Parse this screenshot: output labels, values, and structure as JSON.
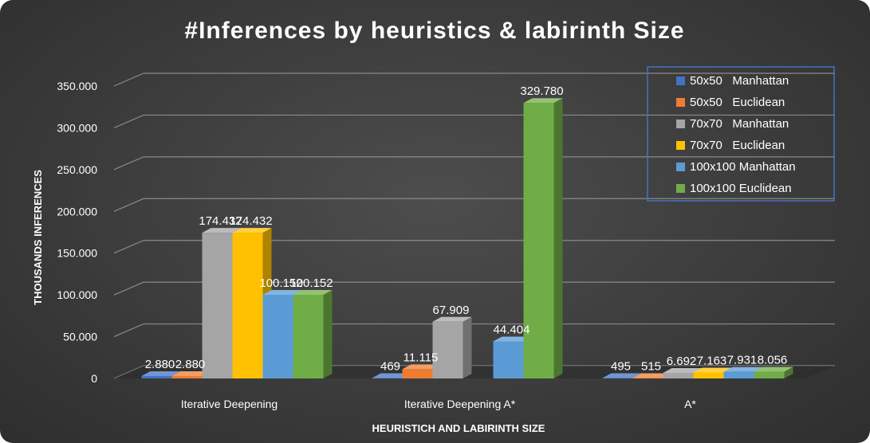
{
  "chart_data": {
    "type": "bar",
    "title": "#Inferences by heuristics & labirinth Size",
    "xlabel": "HEURISTICH AND LABIRINTH SIZE",
    "ylabel": "THOUSANDS INFERENCES",
    "ylim": [
      0,
      350000
    ],
    "yticks": [
      0,
      50000,
      100000,
      150000,
      200000,
      250000,
      300000,
      350000
    ],
    "ytick_labels": [
      "0",
      "50.000",
      "100.000",
      "150.000",
      "200.000",
      "250.000",
      "300.000",
      "350.000"
    ],
    "categories": [
      "Iterative Deepening",
      "Iterative Deepening A*",
      "A*"
    ],
    "legend_position": "top-right",
    "grid": true,
    "series": [
      {
        "name": "50x50   Manhattan",
        "values": [
          2880,
          469,
          495
        ],
        "labels": [
          "2.880",
          "469",
          "495"
        ],
        "color": "#4472c4"
      },
      {
        "name": "50x50   Euclidean",
        "values": [
          2880,
          11115,
          515
        ],
        "labels": [
          "2.880",
          "11.115",
          "515"
        ],
        "color": "#ed7d31"
      },
      {
        "name": "70x70   Manhattan",
        "values": [
          174432,
          67909,
          6692
        ],
        "labels": [
          "174.432",
          "67.909",
          "6.692"
        ],
        "color": "#a5a5a5"
      },
      {
        "name": "70x70   Euclidean",
        "values": [
          174432,
          0,
          7163
        ],
        "labels": [
          "174.432",
          "",
          "7.163"
        ],
        "color": "#ffc000"
      },
      {
        "name": "100x100 Manhattan",
        "values": [
          100152,
          44404,
          7931
        ],
        "labels": [
          "100.152",
          "44.404",
          "7.931"
        ],
        "color": "#5b9bd5"
      },
      {
        "name": "100x100 Euclidean",
        "values": [
          100152,
          329780,
          8056
        ],
        "labels": [
          "100.152",
          "329.780",
          "8.056"
        ],
        "color": "#70ad47"
      }
    ]
  }
}
